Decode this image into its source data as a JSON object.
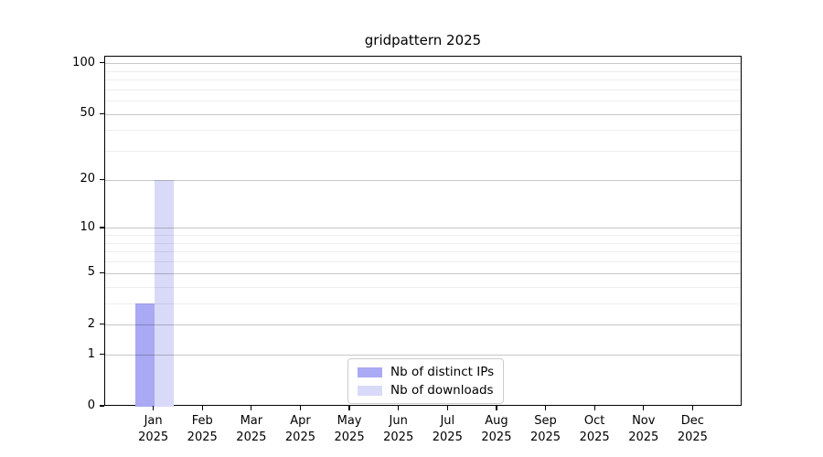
{
  "figure": {
    "background": "#ffffff"
  },
  "chart_data": {
    "type": "bar",
    "title": "gridpattern 2025",
    "categories": [
      "Jan",
      "Feb",
      "Mar",
      "Apr",
      "May",
      "Jun",
      "Jul",
      "Aug",
      "Sep",
      "Oct",
      "Nov",
      "Dec"
    ],
    "year_label": "2025",
    "series": [
      {
        "name": "Nb of distinct IPs",
        "color": "#a9a9f4",
        "values": [
          3,
          0,
          0,
          0,
          0,
          0,
          0,
          0,
          0,
          0,
          0,
          0
        ]
      },
      {
        "name": "Nb of downloads",
        "color": "#d9d9f8",
        "values": [
          20,
          0,
          0,
          0,
          0,
          0,
          0,
          0,
          0,
          0,
          0,
          0
        ]
      }
    ],
    "yscale": "log1p",
    "ylim": [
      0,
      110
    ],
    "yticks_major": [
      0,
      1,
      2,
      5,
      10,
      20,
      50,
      100
    ],
    "yticks_minor": [
      3,
      4,
      6,
      7,
      8,
      9,
      30,
      40,
      60,
      70,
      80,
      90
    ],
    "grid": "horizontal",
    "grid_above_bars": true,
    "legend_position": "lower center",
    "colors": {
      "axis": "#000000",
      "grid_major": "rgba(0,0,0,0.22)",
      "grid_minor": "rgba(0,0,0,0.07)",
      "legend_border": "#cccccc"
    }
  }
}
